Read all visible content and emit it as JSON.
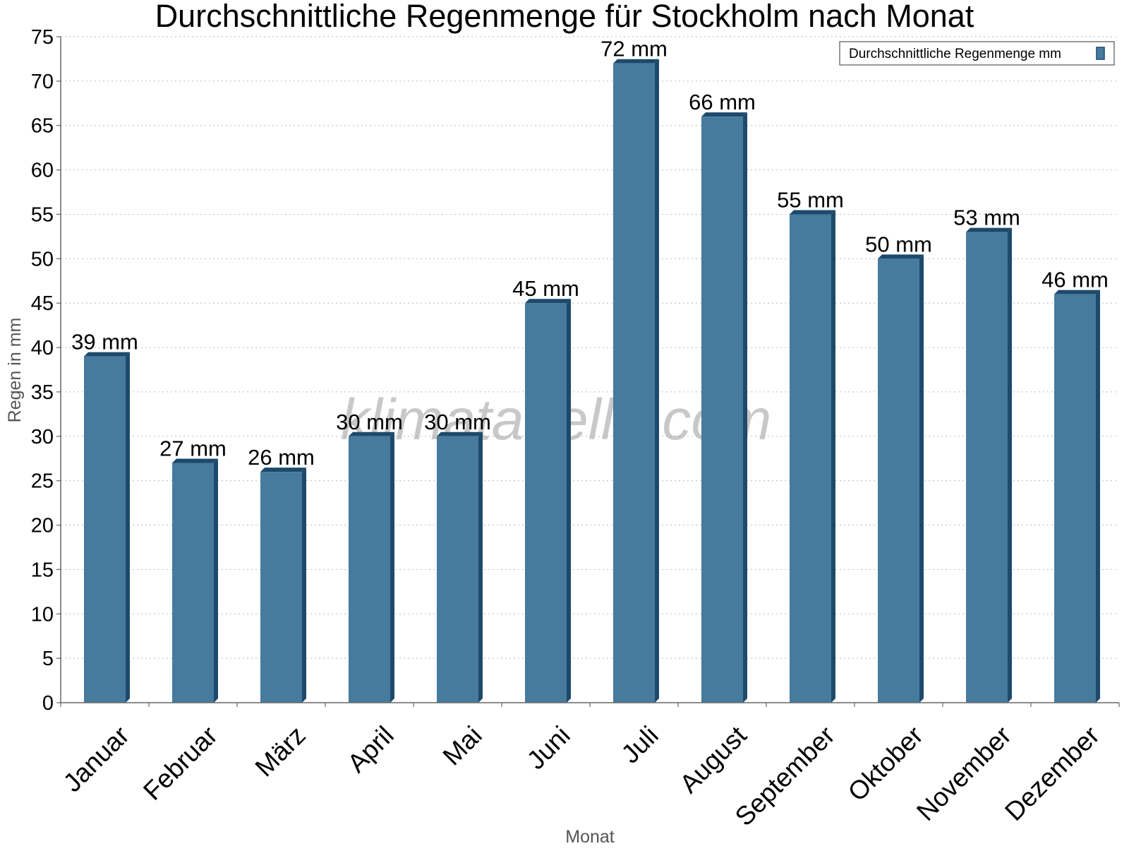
{
  "chart_data": {
    "type": "bar",
    "title": "Durchschnittliche Regenmenge für Stockholm nach Monat",
    "xlabel": "Monat",
    "ylabel": "Regen in mm",
    "categories": [
      "Januar",
      "Februar",
      "März",
      "April",
      "Mai",
      "Juni",
      "Juli",
      "August",
      "September",
      "Oktober",
      "November",
      "Dezember"
    ],
    "series": [
      {
        "name": "Durchschnittliche Regenmenge mm",
        "values": [
          39,
          27,
          26,
          30,
          30,
          45,
          72,
          66,
          55,
          50,
          53,
          46
        ],
        "data_labels": [
          "39 mm",
          "27 mm",
          "26 mm",
          "30 mm",
          "30 mm",
          "45 mm",
          "72 mm",
          "66 mm",
          "55 mm",
          "50 mm",
          "53 mm",
          "46 mm"
        ],
        "color": "#467b9e",
        "side_color": "#1d4a6b"
      }
    ],
    "ylim": [
      0,
      75
    ],
    "yticks": [
      0,
      5,
      10,
      15,
      20,
      25,
      30,
      35,
      40,
      45,
      50,
      55,
      60,
      65,
      70,
      75
    ],
    "ytick_labels": [
      "0",
      "5",
      "10",
      "15",
      "20",
      "25",
      "30",
      "35",
      "40",
      "45",
      "50",
      "55",
      "60",
      "65",
      "70",
      "75"
    ],
    "grid": true,
    "legend_position": "top-right",
    "watermark": "klimatabelle.com"
  }
}
